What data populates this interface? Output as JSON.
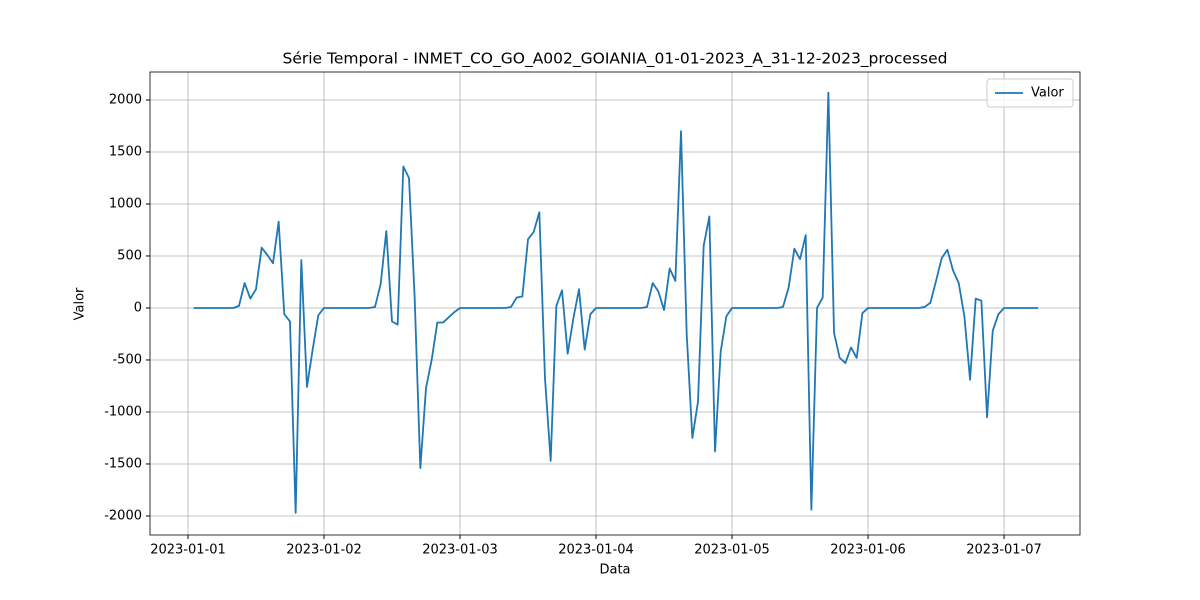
{
  "chart_data": {
    "type": "line",
    "title": "Série Temporal - INMET_CO_GO_A002_GOIANIA_01-01-2023_A_31-12-2023_processed",
    "x_label": "Data",
    "y_label": "Valor",
    "x": [
      1,
      2,
      3,
      4,
      5,
      6,
      7,
      8,
      9,
      10,
      11,
      12,
      13,
      14,
      15,
      16,
      17,
      18,
      19,
      20,
      21,
      22,
      23,
      24,
      25,
      26,
      27,
      28,
      29,
      30,
      31,
      32,
      33,
      34,
      35,
      36,
      37,
      38,
      39,
      40,
      41,
      42,
      43,
      44,
      45,
      46,
      47,
      48,
      49,
      50,
      51,
      52,
      53,
      54,
      55,
      56,
      57,
      58,
      59,
      60,
      61,
      62,
      63,
      64,
      65,
      66,
      67,
      68,
      69,
      70,
      71,
      72,
      73,
      74,
      75,
      76,
      77,
      78,
      79,
      80,
      81,
      82,
      83,
      84,
      85,
      86,
      87,
      88,
      89,
      90,
      91,
      92,
      93,
      94,
      95,
      96,
      97,
      98,
      99,
      100,
      101,
      102,
      103,
      104,
      105,
      106,
      107,
      108,
      109,
      110,
      111,
      112,
      113,
      114,
      115,
      116,
      117,
      118,
      119,
      120,
      121,
      122,
      123,
      124,
      125,
      126,
      127,
      128,
      129,
      130,
      131,
      132,
      133,
      134,
      135,
      136,
      137,
      138,
      139,
      140,
      141,
      142,
      143,
      144,
      145,
      146,
      147,
      148,
      149,
      150
    ],
    "series": [
      {
        "name": "Valor",
        "color": "#1f77b4",
        "values": [
          0,
          0,
          0,
          0,
          0,
          0,
          0,
          0,
          20,
          240,
          90,
          180,
          580,
          510,
          430,
          830,
          -60,
          -130,
          -1970,
          460,
          -760,
          -400,
          -70,
          0,
          0,
          0,
          0,
          0,
          0,
          0,
          0,
          0,
          10,
          230,
          740,
          -130,
          -160,
          1360,
          1250,
          100,
          -1540,
          -770,
          -500,
          -140,
          -140,
          -90,
          -40,
          0,
          0,
          0,
          0,
          0,
          0,
          0,
          0,
          0,
          10,
          100,
          110,
          660,
          730,
          920,
          -680,
          -1470,
          20,
          170,
          -440,
          -100,
          180,
          -400,
          -60,
          0,
          0,
          0,
          0,
          0,
          0,
          0,
          0,
          0,
          10,
          240,
          160,
          -20,
          380,
          260,
          1700,
          -250,
          -1250,
          -900,
          600,
          880,
          -1380,
          -420,
          -80,
          0,
          0,
          0,
          0,
          0,
          0,
          0,
          0,
          0,
          10,
          200,
          570,
          470,
          700,
          -1940,
          0,
          100,
          2070,
          -240,
          -480,
          -530,
          -380,
          -480,
          -50,
          0,
          0,
          0,
          0,
          0,
          0,
          0,
          0,
          0,
          0,
          10,
          50,
          260,
          480,
          560,
          360,
          240,
          -80,
          -690,
          90,
          70,
          -1050,
          -220,
          -60,
          0,
          0,
          0,
          0,
          0,
          0,
          0
        ]
      }
    ],
    "xlim": [
      -6.7,
      157.4
    ],
    "xticks": [
      {
        "value": 0,
        "label": "2023-01-01"
      },
      {
        "value": 24,
        "label": "2023-01-02"
      },
      {
        "value": 48,
        "label": "2023-01-03"
      },
      {
        "value": 72,
        "label": "2023-01-04"
      },
      {
        "value": 96,
        "label": "2023-01-05"
      },
      {
        "value": 120,
        "label": "2023-01-06"
      },
      {
        "value": 144,
        "label": "2023-01-07"
      }
    ],
    "ylim": [
      -2183,
      2269
    ],
    "yticks": [
      -2000,
      -1500,
      -1000,
      -500,
      0,
      500,
      1000,
      1500,
      2000
    ],
    "grid": true,
    "legend": "upper right"
  }
}
